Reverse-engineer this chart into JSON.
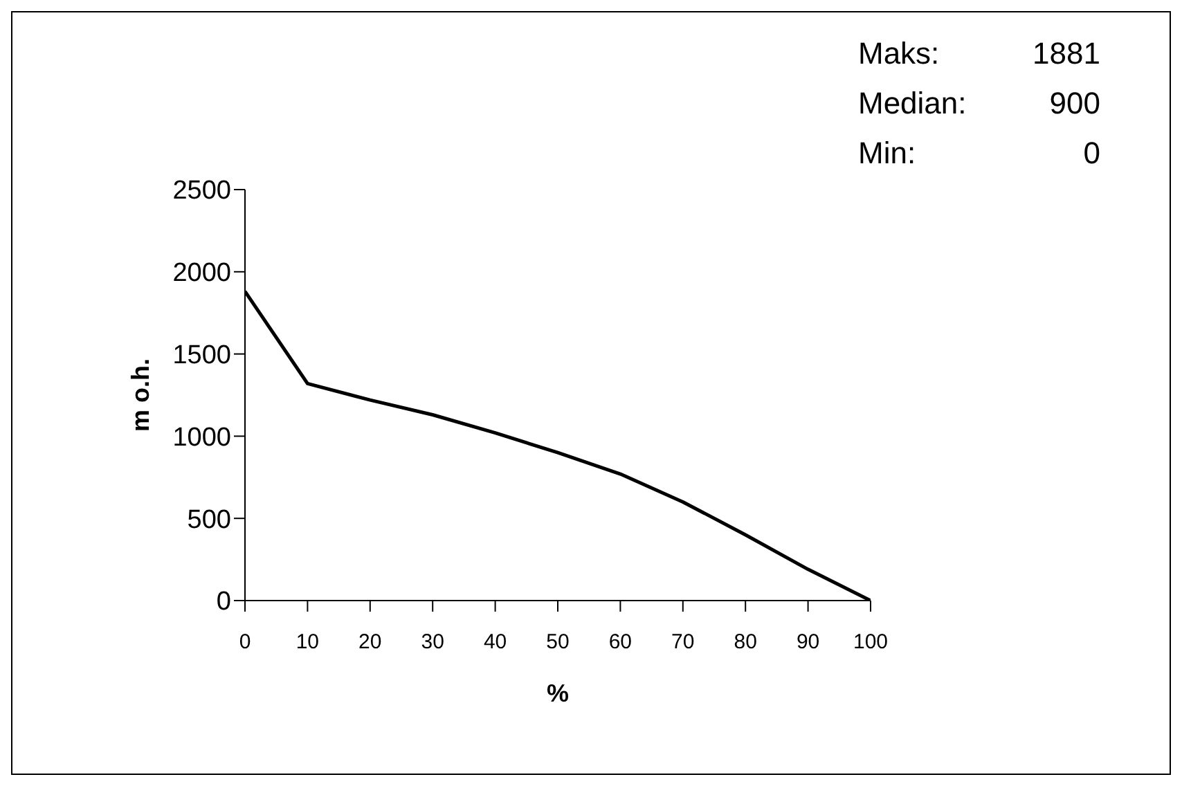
{
  "chart_data": {
    "type": "line",
    "xlabel": "%",
    "ylabel": "m o.h.",
    "x": [
      0,
      10,
      20,
      30,
      40,
      50,
      60,
      70,
      80,
      90,
      100
    ],
    "series": [
      {
        "color": "#000000",
        "values": [
          1881,
          1320,
          1220,
          1130,
          1020,
          900,
          770,
          600,
          400,
          190,
          0
        ]
      }
    ],
    "xlim": [
      0,
      100
    ],
    "xticks": [
      0,
      10,
      20,
      30,
      40,
      50,
      60,
      70,
      80,
      90,
      100
    ],
    "ylim": [
      0,
      2500
    ],
    "yticks": [
      0,
      500,
      1000,
      1500,
      2000,
      2500
    ],
    "grid": false,
    "marker": "none",
    "line_style": "solid",
    "annotations": [
      "Maks:  1881",
      "Median:  900",
      "Min:  0"
    ]
  }
}
